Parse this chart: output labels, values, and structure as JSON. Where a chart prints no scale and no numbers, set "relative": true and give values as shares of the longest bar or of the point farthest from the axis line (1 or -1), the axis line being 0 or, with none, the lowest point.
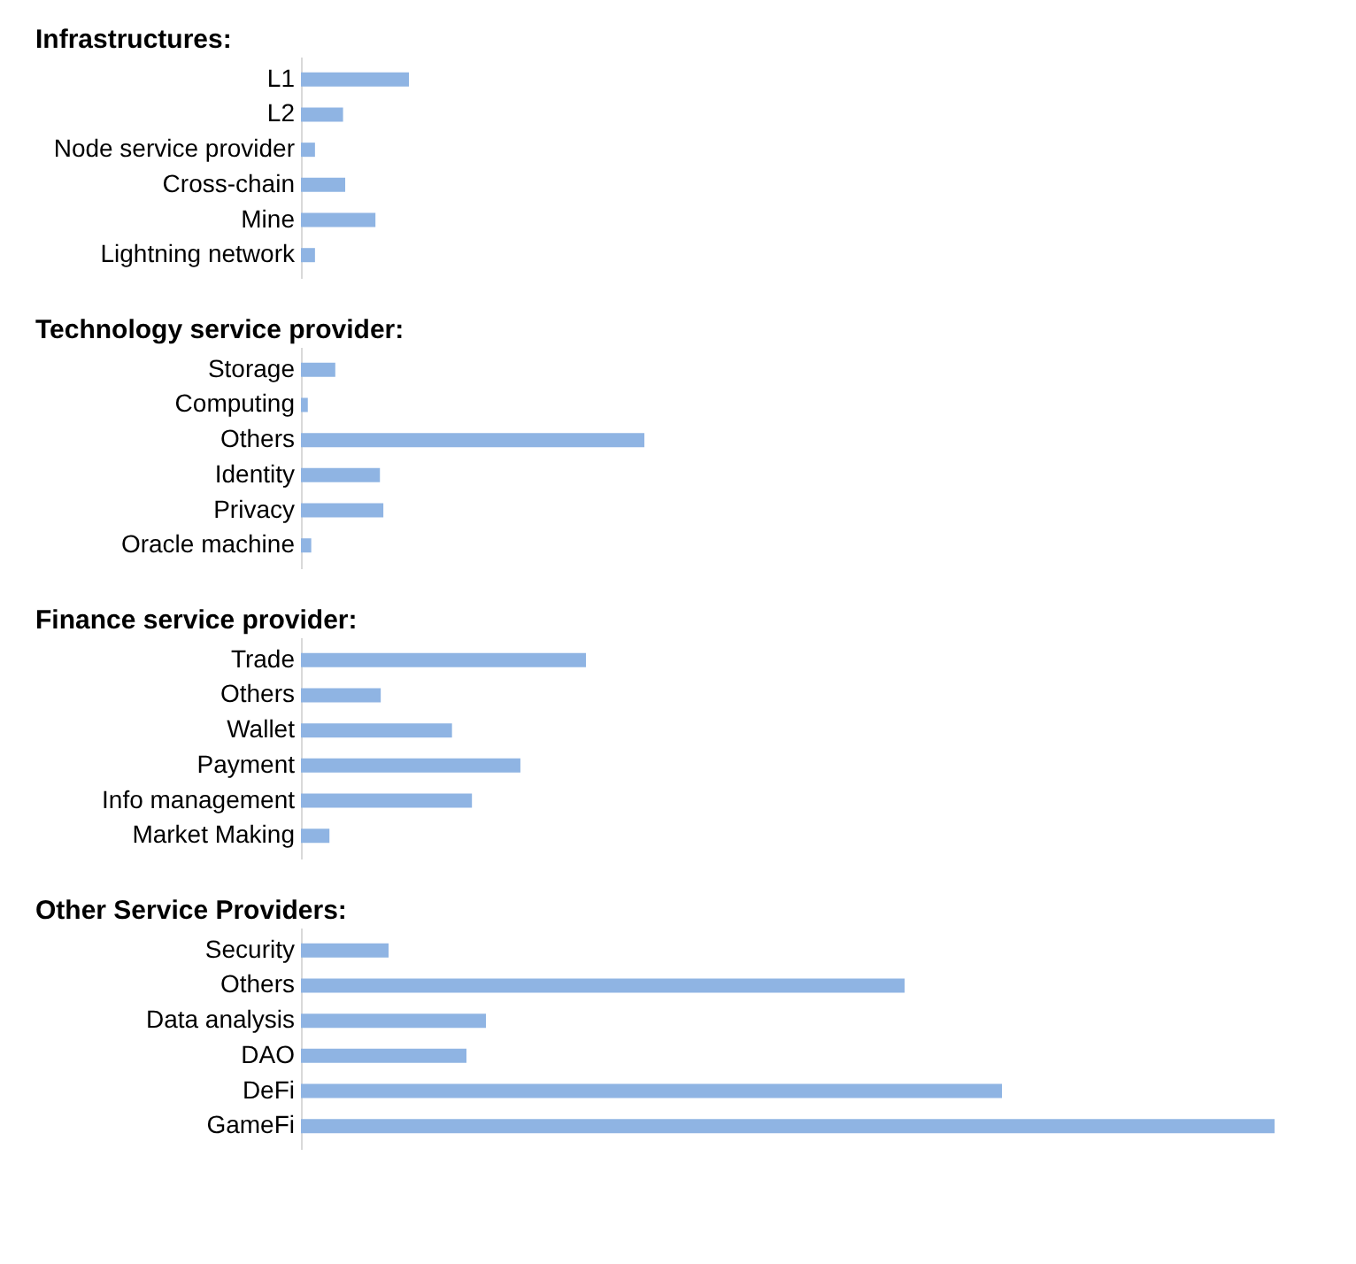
{
  "chart_data": [
    {
      "type": "bar",
      "orientation": "horizontal",
      "relative": true,
      "title": "Infrastructures:",
      "categories": [
        "L1",
        "L2",
        "Node service provider",
        "Cross-chain",
        "Mine",
        "Lightning network"
      ],
      "series": [
        {
          "color": "#8fb4e3",
          "values": [
            1,
            0.39,
            0.13,
            0.41,
            0.69,
            0.13
          ]
        }
      ]
    },
    {
      "type": "bar",
      "orientation": "horizontal",
      "relative": true,
      "title": "Technology service provider:",
      "categories": [
        "Storage",
        "Computing",
        "Others",
        "Identity",
        "Privacy",
        "Oracle machine"
      ],
      "series": [
        {
          "color": "#8fb4e3",
          "values": [
            0.1,
            0.02,
            1,
            0.23,
            0.24,
            0.03
          ]
        }
      ]
    },
    {
      "type": "bar",
      "orientation": "horizontal",
      "relative": true,
      "title": "Finance service provider:",
      "categories": [
        "Trade",
        "Others",
        "Wallet",
        "Payment",
        "Info management",
        "Market Making"
      ],
      "series": [
        {
          "color": "#8fb4e3",
          "values": [
            1,
            0.28,
            0.53,
            0.77,
            0.6,
            0.1
          ]
        }
      ]
    },
    {
      "type": "bar",
      "orientation": "horizontal",
      "relative": true,
      "title": "Other Service Providers:",
      "categories": [
        "Security",
        "Others",
        "Data analysis",
        "DAO",
        "DeFi",
        "GameFi"
      ],
      "series": [
        {
          "color": "#8fb4e3",
          "values": [
            0.09,
            0.62,
            0.19,
            0.17,
            0.72,
            1
          ]
        }
      ]
    }
  ]
}
